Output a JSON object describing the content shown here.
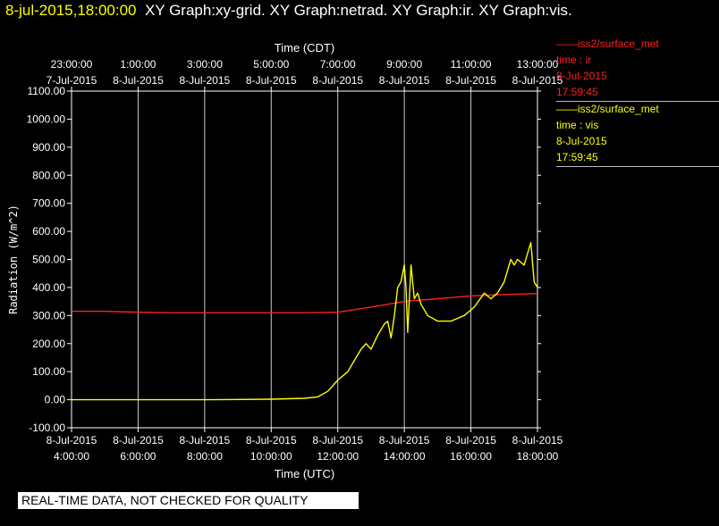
{
  "header": {
    "timestamp": "8-jul-2015,18:00:00",
    "graphs": "XY Graph:xy-grid.  XY Graph:netrad.  XY Graph:ir.  XY Graph:vis."
  },
  "legend": [
    {
      "name": "iss2/surface_met",
      "var": "time : ir",
      "date": "8-Jul-2015",
      "time": "17:59:45",
      "color": "#ff2020"
    },
    {
      "name": "iss2/surface_met",
      "var": "time : vis",
      "date": "8-Jul-2015",
      "time": "17:59:45",
      "color": "#ffff00"
    }
  ],
  "notice": "REAL-TIME DATA, NOT CHECKED FOR QUALITY",
  "chart_data": {
    "type": "line",
    "ylabel": "Radiation (W/m^2)",
    "xlabel": "Time (UTC)",
    "x2label": "Time (CDT)",
    "ylim": [
      -100,
      1100
    ],
    "yticks": [
      "-100.00",
      "0.00",
      "100.00",
      "200.00",
      "300.00",
      "400.00",
      "500.00",
      "600.00",
      "700.00",
      "800.00",
      "900.00",
      "1000.00",
      "1100.00"
    ],
    "xlim_hours": [
      4.0,
      18.0
    ],
    "bottom_ticks": [
      {
        "h": 4,
        "l1": "8-Jul-2015",
        "l2": "4:00:00"
      },
      {
        "h": 6,
        "l1": "8-Jul-2015",
        "l2": "6:00:00"
      },
      {
        "h": 8,
        "l1": "8-Jul-2015",
        "l2": "8:00:00"
      },
      {
        "h": 10,
        "l1": "8-Jul-2015",
        "l2": "10:00:00"
      },
      {
        "h": 12,
        "l1": "8-Jul-2015",
        "l2": "12:00:00"
      },
      {
        "h": 14,
        "l1": "8-Jul-2015",
        "l2": "14:00:00"
      },
      {
        "h": 16,
        "l1": "8-Jul-2015",
        "l2": "16:00:00"
      },
      {
        "h": 18,
        "l1": "8-Jul-2015",
        "l2": "18:00:00"
      }
    ],
    "top_ticks": [
      {
        "h": 4,
        "l1": "23:00:00",
        "l2": "7-Jul-2015"
      },
      {
        "h": 6,
        "l1": "1:00:00",
        "l2": "8-Jul-2015"
      },
      {
        "h": 8,
        "l1": "3:00:00",
        "l2": "8-Jul-2015"
      },
      {
        "h": 10,
        "l1": "5:00:00",
        "l2": "8-Jul-2015"
      },
      {
        "h": 12,
        "l1": "7:00:00",
        "l2": "8-Jul-2015"
      },
      {
        "h": 14,
        "l1": "9:00:00",
        "l2": "8-Jul-2015"
      },
      {
        "h": 16,
        "l1": "11:00:00",
        "l2": "8-Jul-2015"
      },
      {
        "h": 18,
        "l1": "13:00:00",
        "l2": "8-Jul-2015"
      }
    ],
    "series": [
      {
        "name": "ir",
        "color": "#ff2020",
        "x": [
          4.0,
          5.0,
          6.0,
          7.0,
          8.0,
          9.0,
          10.0,
          11.0,
          12.0,
          13.0,
          14.0,
          15.0,
          16.0,
          17.0,
          18.0
        ],
        "y": [
          315,
          315,
          312,
          310,
          310,
          310,
          310,
          310,
          312,
          330,
          350,
          360,
          370,
          375,
          378
        ]
      },
      {
        "name": "vis",
        "color": "#ffff00",
        "x": [
          4.0,
          6.0,
          8.0,
          10.0,
          11.0,
          11.4,
          11.7,
          12.0,
          12.3,
          12.5,
          12.7,
          12.85,
          13.0,
          13.2,
          13.4,
          13.5,
          13.6,
          13.7,
          13.8,
          13.9,
          14.0,
          14.05,
          14.1,
          14.2,
          14.3,
          14.4,
          14.5,
          14.7,
          15.0,
          15.4,
          15.8,
          16.1,
          16.4,
          16.6,
          16.8,
          16.9,
          17.0,
          17.1,
          17.2,
          17.3,
          17.4,
          17.5,
          17.6,
          17.7,
          17.8,
          17.9,
          18.0
        ],
        "y": [
          0,
          0,
          0,
          2,
          5,
          10,
          30,
          70,
          100,
          140,
          180,
          200,
          180,
          230,
          270,
          280,
          220,
          300,
          400,
          420,
          480,
          400,
          240,
          480,
          360,
          380,
          340,
          300,
          280,
          280,
          300,
          330,
          380,
          360,
          380,
          400,
          420,
          460,
          500,
          480,
          500,
          490,
          480,
          520,
          560,
          420,
          400
        ]
      }
    ]
  }
}
